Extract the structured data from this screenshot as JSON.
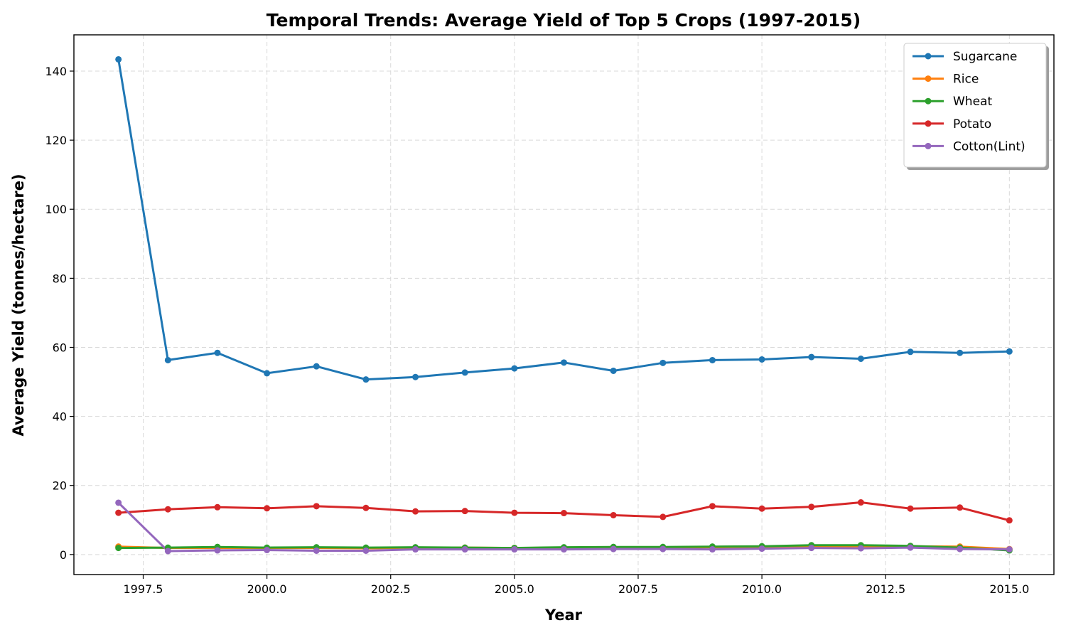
{
  "chart_data": {
    "type": "line",
    "title": "Temporal Trends: Average Yield of Top 5 Crops (1997-2015)",
    "xlabel": "Year",
    "ylabel": "Average Yield (tonnes/hectare)",
    "x": [
      1997,
      1998,
      1999,
      2000,
      2001,
      2002,
      2003,
      2004,
      2005,
      2006,
      2007,
      2008,
      2009,
      2010,
      2011,
      2012,
      2013,
      2014,
      2015
    ],
    "xlim": [
      1996.1,
      2015.9
    ],
    "ylim": [
      -5.8,
      150.5
    ],
    "xticks": [
      1997.5,
      2000.0,
      2002.5,
      2005.0,
      2007.5,
      2010.0,
      2012.5,
      2015.0
    ],
    "xtick_labels": [
      "1997.5",
      "2000.0",
      "2002.5",
      "2005.0",
      "2007.5",
      "2010.0",
      "2012.5",
      "2015.0"
    ],
    "yticks": [
      0,
      20,
      40,
      60,
      80,
      100,
      120,
      140
    ],
    "ytick_labels": [
      "0",
      "20",
      "40",
      "60",
      "80",
      "100",
      "120",
      "140"
    ],
    "grid": true,
    "legend_position": "top-right",
    "series": [
      {
        "name": "Sugarcane",
        "color": "#1f77b4",
        "values": [
          143.4,
          56.3,
          58.4,
          52.5,
          54.5,
          50.7,
          51.4,
          52.7,
          53.9,
          55.6,
          53.2,
          55.5,
          56.3,
          56.5,
          57.2,
          56.7,
          58.7,
          58.4,
          58.8
        ]
      },
      {
        "name": "Rice",
        "color": "#ff7f0e",
        "values": [
          2.3,
          1.9,
          1.9,
          1.9,
          1.9,
          1.8,
          2.0,
          2.0,
          1.9,
          2.0,
          2.1,
          2.1,
          2.1,
          2.2,
          2.4,
          2.4,
          2.4,
          2.3,
          1.6
        ]
      },
      {
        "name": "Wheat",
        "color": "#2ca02c",
        "values": [
          1.9,
          2.0,
          2.2,
          2.0,
          2.1,
          2.0,
          2.1,
          2.0,
          1.9,
          2.1,
          2.2,
          2.2,
          2.3,
          2.4,
          2.7,
          2.7,
          2.5,
          2.0,
          1.2
        ]
      },
      {
        "name": "Potato",
        "color": "#d62728",
        "values": [
          12.1,
          13.1,
          13.7,
          13.4,
          14.0,
          13.5,
          12.5,
          12.6,
          12.1,
          12.0,
          11.4,
          10.9,
          14.0,
          13.3,
          13.8,
          15.1,
          13.3,
          13.6,
          9.9
        ]
      },
      {
        "name": "Cotton(Lint)",
        "color": "#9467bd",
        "values": [
          15.0,
          1.0,
          1.2,
          1.3,
          1.1,
          1.1,
          1.5,
          1.5,
          1.5,
          1.5,
          1.6,
          1.6,
          1.5,
          1.7,
          1.9,
          1.8,
          2.0,
          1.6,
          1.5
        ]
      }
    ]
  }
}
